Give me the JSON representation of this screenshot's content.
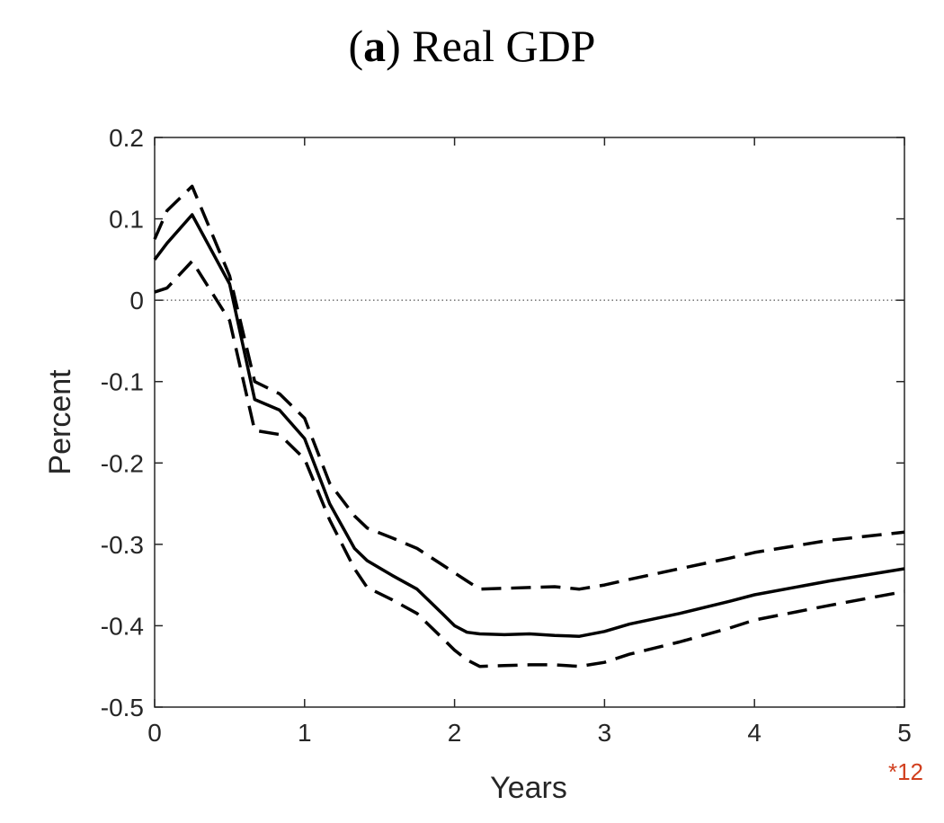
{
  "title": {
    "panel_label": "(a)",
    "panel_letter": "a",
    "text": "Real GDP"
  },
  "chart_data": {
    "type": "line",
    "title": "(a) Real GDP",
    "xlabel": "Years",
    "ylabel": "Percent",
    "xlim": [
      0,
      5
    ],
    "ylim": [
      -0.5,
      0.2
    ],
    "x_ticks": [
      "0",
      "1",
      "2",
      "3",
      "4",
      "5"
    ],
    "y_ticks": [
      "0.2",
      "0.1",
      "0",
      "-0.1",
      "-0.2",
      "-0.3",
      "-0.4",
      "-0.5"
    ],
    "x_multiplier_label": "*12",
    "grid": false,
    "zero_line": {
      "y": 0,
      "style": "dotted"
    },
    "x": [
      0,
      0.083,
      0.25,
      0.5,
      0.667,
      0.833,
      1.0,
      1.167,
      1.333,
      1.417,
      1.583,
      1.75,
      1.917,
      2.0,
      2.083,
      2.167,
      2.333,
      2.5,
      2.667,
      2.833,
      3.0,
      3.167,
      3.5,
      3.833,
      4.0,
      4.5,
      5.0
    ],
    "series": [
      {
        "role": "estimate",
        "style": "solid",
        "values": [
          0.05,
          0.07,
          0.105,
          0.02,
          -0.122,
          -0.135,
          -0.17,
          -0.25,
          -0.305,
          -0.32,
          -0.338,
          -0.355,
          -0.385,
          -0.4,
          -0.408,
          -0.41,
          -0.411,
          -0.41,
          -0.412,
          -0.413,
          -0.407,
          -0.398,
          -0.385,
          -0.37,
          -0.362,
          -0.345,
          -0.33
        ]
      },
      {
        "role": "upper band",
        "style": "dashed",
        "values": [
          0.075,
          0.11,
          0.14,
          0.03,
          -0.1,
          -0.115,
          -0.145,
          -0.225,
          -0.265,
          -0.28,
          -0.292,
          -0.305,
          -0.325,
          -0.335,
          -0.345,
          -0.355,
          -0.354,
          -0.353,
          -0.352,
          -0.355,
          -0.35,
          -0.343,
          -0.33,
          -0.317,
          -0.31,
          -0.295,
          -0.285
        ]
      },
      {
        "role": "lower band",
        "style": "dashed",
        "values": [
          0.01,
          0.015,
          0.048,
          -0.025,
          -0.16,
          -0.165,
          -0.195,
          -0.27,
          -0.33,
          -0.353,
          -0.368,
          -0.385,
          -0.415,
          -0.43,
          -0.442,
          -0.45,
          -0.449,
          -0.448,
          -0.448,
          -0.45,
          -0.445,
          -0.435,
          -0.42,
          -0.403,
          -0.393,
          -0.375,
          -0.358
        ]
      }
    ]
  }
}
